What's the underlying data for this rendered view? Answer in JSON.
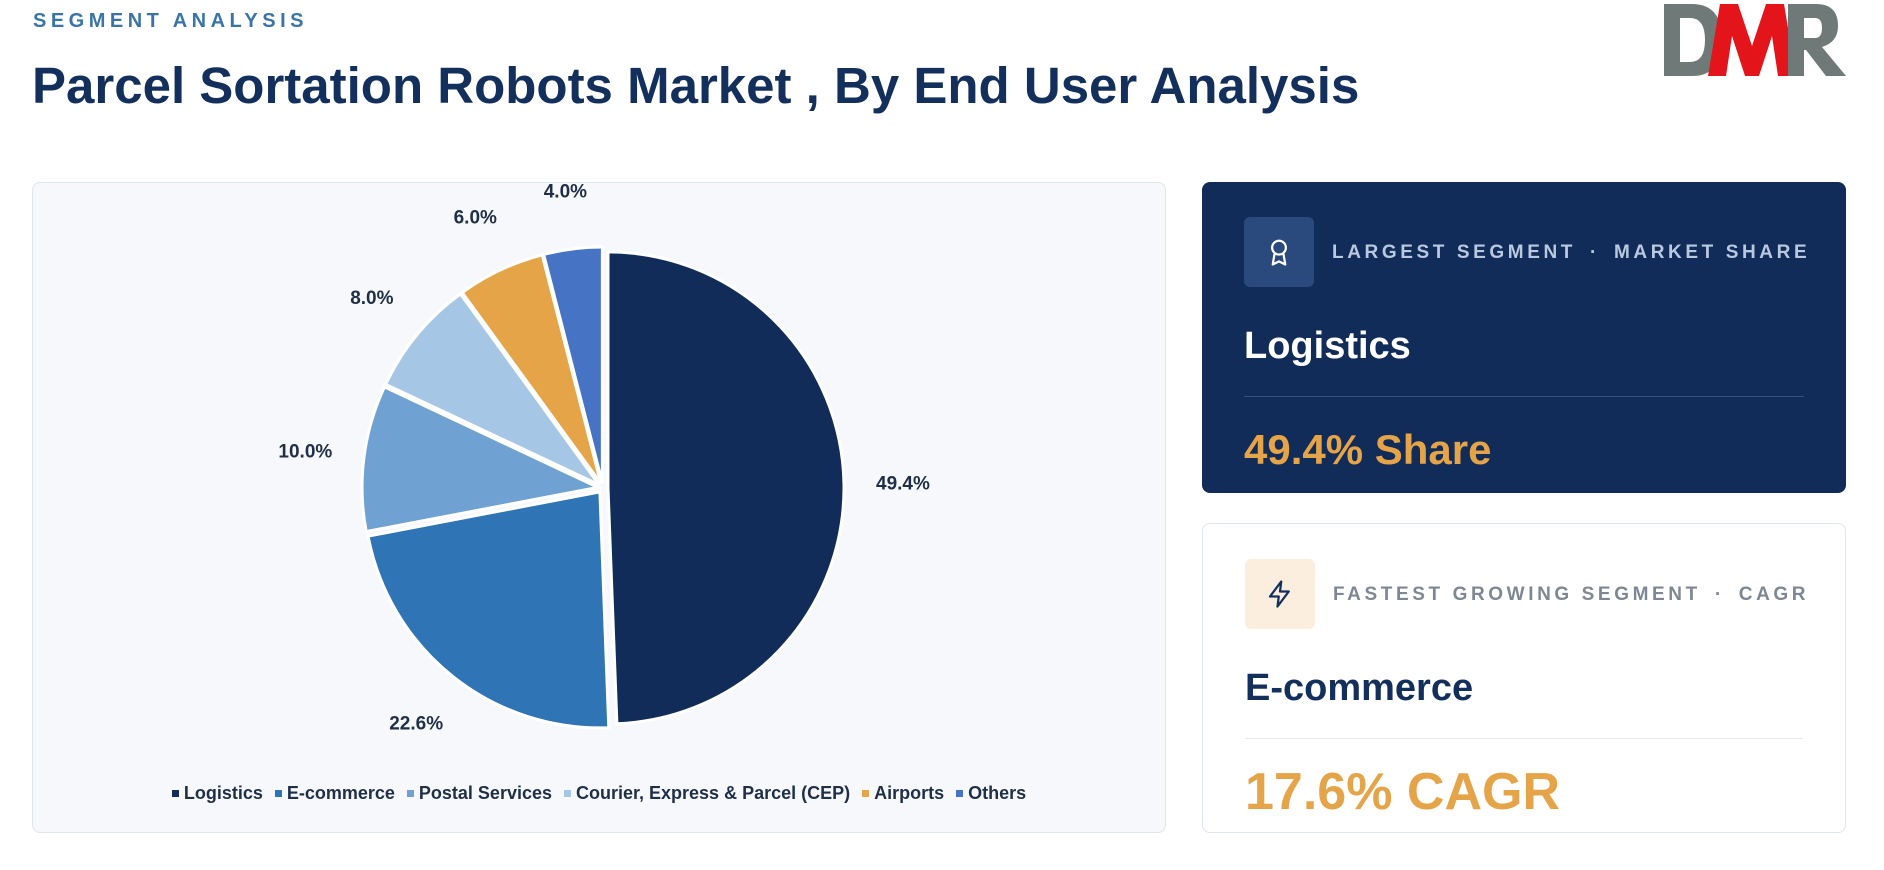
{
  "header": {
    "eyebrow": "SEGMENT ANALYSIS",
    "title": "Parcel Sortation Robots Market , By End User Analysis",
    "logo_text": "DMR"
  },
  "chart_data": {
    "type": "pie",
    "title": "",
    "categories": [
      "Logistics",
      "E-commerce",
      "Postal Services",
      "Courier, Express & Parcel (CEP)",
      "Airports",
      "Others"
    ],
    "values": [
      49.4,
      22.6,
      10.0,
      8.0,
      6.0,
      4.0
    ],
    "value_labels": [
      "49.4%",
      "22.6%",
      "10.0%",
      "8.0%",
      "6.0%",
      "4.0%"
    ],
    "colors": [
      "#112c59",
      "#2f74b5",
      "#6fa2d2",
      "#a6c6e5",
      "#e6a449",
      "#4673c4"
    ],
    "legend_position": "bottom",
    "exploded": true
  },
  "largest": {
    "label": "LARGEST SEGMENT",
    "metric": "MARKET SHARE",
    "separator": "·",
    "segment": "Logistics",
    "value": "49.4% Share",
    "icon": "award-icon"
  },
  "fastest": {
    "label": "FASTEST GROWING SEGMENT",
    "metric": "CAGR",
    "separator": "·",
    "segment": "E-commerce",
    "value": "17.6% CAGR",
    "icon": "lightning-icon"
  }
}
